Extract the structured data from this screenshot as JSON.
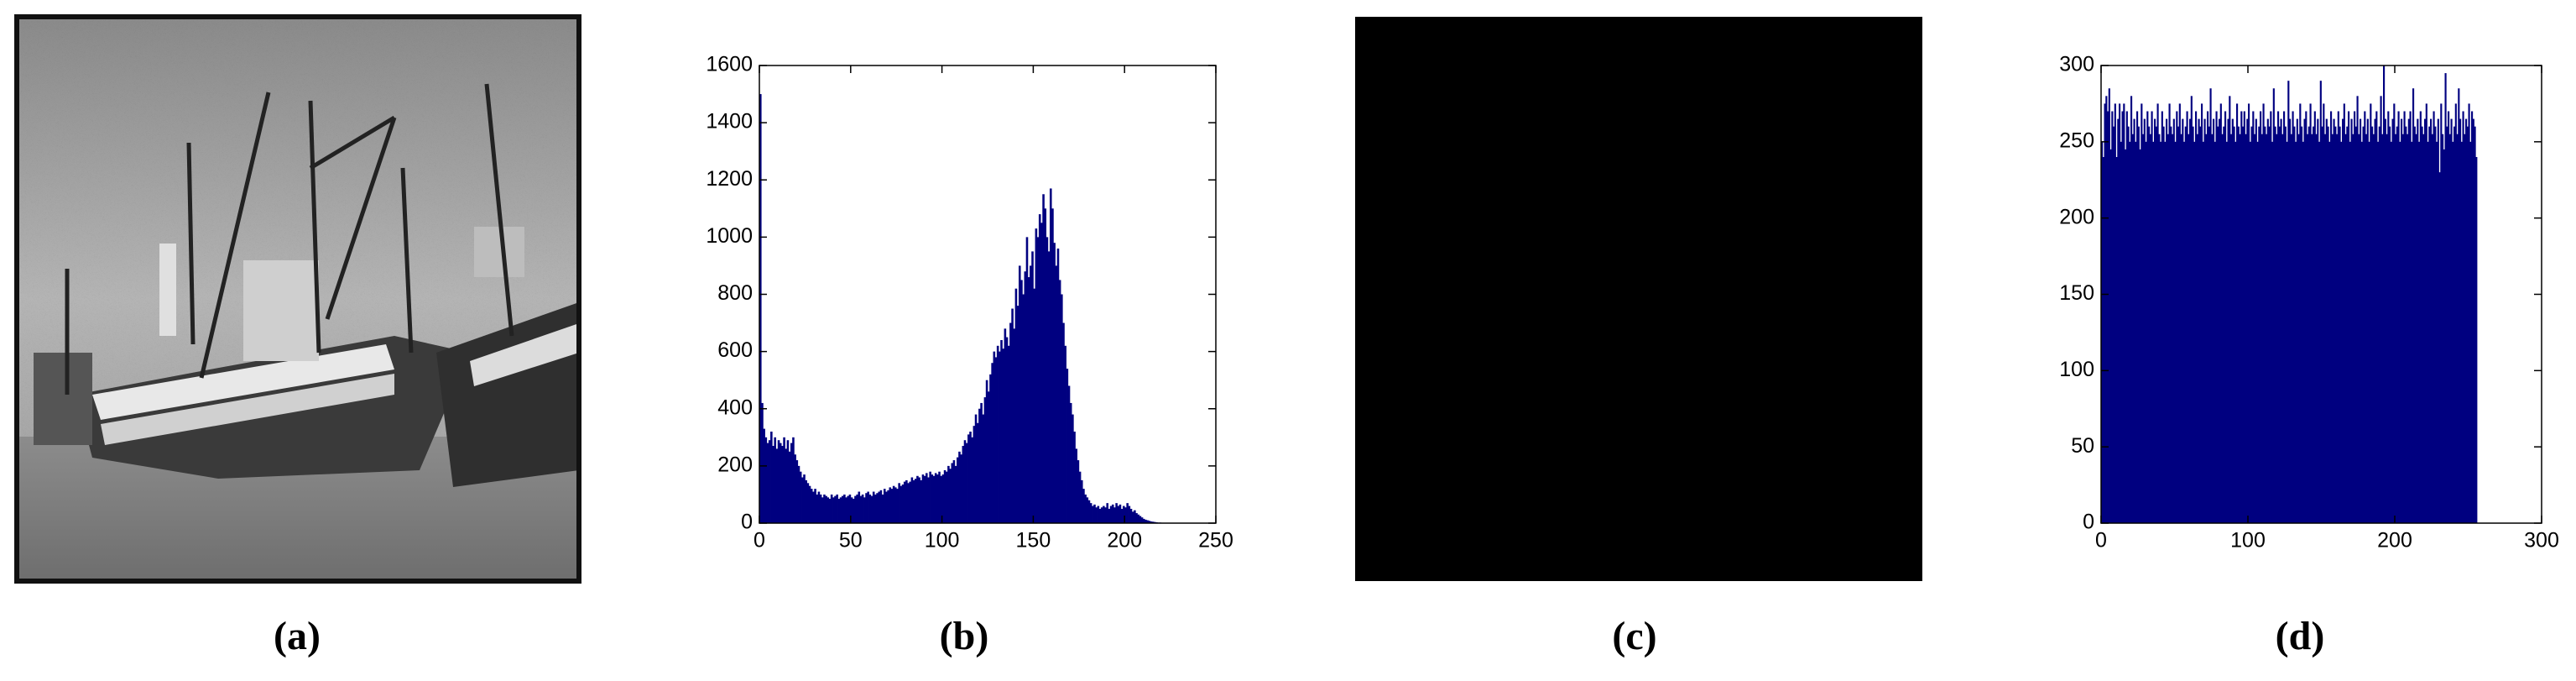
{
  "captions": [
    "(a)",
    "(b)",
    "(c)",
    "(d)"
  ],
  "chart_data": [
    {
      "type": "histogram",
      "color": "#000080",
      "xlim": [
        0,
        250
      ],
      "xticks": [
        0,
        50,
        100,
        150,
        200,
        250
      ],
      "ylim": [
        0,
        1600
      ],
      "yticks": [
        0,
        200,
        400,
        600,
        800,
        1000,
        1200,
        1400,
        1600
      ],
      "x": [
        0,
        1,
        2,
        3,
        4,
        5,
        6,
        7,
        8,
        9,
        10,
        11,
        12,
        13,
        14,
        15,
        16,
        17,
        18,
        19,
        20,
        21,
        22,
        23,
        24,
        25,
        26,
        27,
        28,
        29,
        30,
        31,
        32,
        33,
        34,
        35,
        36,
        37,
        38,
        39,
        40,
        41,
        42,
        43,
        44,
        45,
        46,
        47,
        48,
        49,
        50,
        51,
        52,
        53,
        54,
        55,
        56,
        57,
        58,
        59,
        60,
        61,
        62,
        63,
        64,
        65,
        66,
        67,
        68,
        69,
        70,
        71,
        72,
        73,
        74,
        75,
        76,
        77,
        78,
        79,
        80,
        81,
        82,
        83,
        84,
        85,
        86,
        87,
        88,
        89,
        90,
        91,
        92,
        93,
        94,
        95,
        96,
        97,
        98,
        99,
        100,
        101,
        102,
        103,
        104,
        105,
        106,
        107,
        108,
        109,
        110,
        111,
        112,
        113,
        114,
        115,
        116,
        117,
        118,
        119,
        120,
        121,
        122,
        123,
        124,
        125,
        126,
        127,
        128,
        129,
        130,
        131,
        132,
        133,
        134,
        135,
        136,
        137,
        138,
        139,
        140,
        141,
        142,
        143,
        144,
        145,
        146,
        147,
        148,
        149,
        150,
        151,
        152,
        153,
        154,
        155,
        156,
        157,
        158,
        159,
        160,
        161,
        162,
        163,
        164,
        165,
        166,
        167,
        168,
        169,
        170,
        171,
        172,
        173,
        174,
        175,
        176,
        177,
        178,
        179,
        180,
        181,
        182,
        183,
        184,
        185,
        186,
        187,
        188,
        189,
        190,
        191,
        192,
        193,
        194,
        195,
        196,
        197,
        198,
        199,
        200,
        201,
        202,
        203,
        204,
        205,
        206,
        207,
        208,
        209,
        210,
        211,
        212,
        213,
        214,
        215,
        216,
        217,
        218,
        219,
        220,
        221,
        222,
        223,
        224,
        225,
        226,
        227,
        228,
        229,
        230,
        231,
        232,
        233,
        234,
        235,
        236,
        237,
        238,
        239,
        240,
        241,
        242,
        243,
        244,
        245,
        246,
        247,
        248,
        249,
        250,
        251,
        252,
        253,
        254,
        255
      ],
      "values": [
        1500,
        420,
        330,
        300,
        280,
        290,
        320,
        270,
        300,
        260,
        290,
        280,
        270,
        300,
        260,
        290,
        250,
        280,
        300,
        240,
        220,
        200,
        180,
        160,
        170,
        150,
        140,
        130,
        120,
        110,
        120,
        100,
        110,
        100,
        90,
        100,
        95,
        90,
        85,
        100,
        90,
        95,
        100,
        85,
        90,
        95,
        100,
        90,
        95,
        100,
        90,
        85,
        95,
        100,
        110,
        95,
        100,
        90,
        105,
        110,
        100,
        95,
        110,
        100,
        105,
        110,
        115,
        100,
        120,
        110,
        115,
        125,
        120,
        130,
        125,
        120,
        140,
        130,
        135,
        145,
        150,
        140,
        145,
        160,
        150,
        155,
        165,
        160,
        150,
        170,
        165,
        175,
        160,
        180,
        170,
        165,
        175,
        170,
        180,
        165,
        170,
        185,
        180,
        200,
        190,
        210,
        220,
        200,
        230,
        250,
        240,
        270,
        290,
        280,
        310,
        320,
        300,
        340,
        380,
        350,
        400,
        420,
        380,
        440,
        500,
        460,
        520,
        560,
        600,
        580,
        620,
        600,
        640,
        610,
        680,
        650,
        620,
        700,
        750,
        680,
        820,
        760,
        900,
        850,
        800,
        880,
        1000,
        860,
        900,
        950,
        820,
        1030,
        1000,
        1080,
        1050,
        1150,
        1100,
        1000,
        950,
        1170,
        1100,
        980,
        900,
        960,
        850,
        800,
        700,
        620,
        540,
        480,
        420,
        380,
        320,
        260,
        220,
        180,
        150,
        120,
        100,
        90,
        80,
        70,
        60,
        65,
        55,
        60,
        50,
        55,
        60,
        55,
        70,
        50,
        60,
        65,
        55,
        70,
        60,
        65,
        50,
        60,
        55,
        70,
        60,
        50,
        40,
        45,
        35,
        30,
        25,
        20,
        15,
        12,
        10,
        8,
        6,
        5,
        4,
        3,
        2,
        2,
        1,
        1,
        0,
        0,
        0,
        0,
        0,
        0,
        0,
        0,
        0,
        0,
        0,
        0,
        0,
        0,
        0,
        0,
        0,
        0,
        0,
        0,
        0,
        0,
        0,
        0,
        0,
        0,
        0,
        0,
        0,
        0,
        0,
        0,
        0,
        0
      ]
    },
    {
      "type": "histogram",
      "color": "#000080",
      "xlim": [
        0,
        300
      ],
      "xticks": [
        0,
        100,
        200,
        300
      ],
      "ylim": [
        0,
        300
      ],
      "yticks": [
        0,
        50,
        100,
        150,
        200,
        250,
        300
      ],
      "x": [
        0,
        1,
        2,
        3,
        4,
        5,
        6,
        7,
        8,
        9,
        10,
        11,
        12,
        13,
        14,
        15,
        16,
        17,
        18,
        19,
        20,
        21,
        22,
        23,
        24,
        25,
        26,
        27,
        28,
        29,
        30,
        31,
        32,
        33,
        34,
        35,
        36,
        37,
        38,
        39,
        40,
        41,
        42,
        43,
        44,
        45,
        46,
        47,
        48,
        49,
        50,
        51,
        52,
        53,
        54,
        55,
        56,
        57,
        58,
        59,
        60,
        61,
        62,
        63,
        64,
        65,
        66,
        67,
        68,
        69,
        70,
        71,
        72,
        73,
        74,
        75,
        76,
        77,
        78,
        79,
        80,
        81,
        82,
        83,
        84,
        85,
        86,
        87,
        88,
        89,
        90,
        91,
        92,
        93,
        94,
        95,
        96,
        97,
        98,
        99,
        100,
        101,
        102,
        103,
        104,
        105,
        106,
        107,
        108,
        109,
        110,
        111,
        112,
        113,
        114,
        115,
        116,
        117,
        118,
        119,
        120,
        121,
        122,
        123,
        124,
        125,
        126,
        127,
        128,
        129,
        130,
        131,
        132,
        133,
        134,
        135,
        136,
        137,
        138,
        139,
        140,
        141,
        142,
        143,
        144,
        145,
        146,
        147,
        148,
        149,
        150,
        151,
        152,
        153,
        154,
        155,
        156,
        157,
        158,
        159,
        160,
        161,
        162,
        163,
        164,
        165,
        166,
        167,
        168,
        169,
        170,
        171,
        172,
        173,
        174,
        175,
        176,
        177,
        178,
        179,
        180,
        181,
        182,
        183,
        184,
        185,
        186,
        187,
        188,
        189,
        190,
        191,
        192,
        193,
        194,
        195,
        196,
        197,
        198,
        199,
        200,
        201,
        202,
        203,
        204,
        205,
        206,
        207,
        208,
        209,
        210,
        211,
        212,
        213,
        214,
        215,
        216,
        217,
        218,
        219,
        220,
        221,
        222,
        223,
        224,
        225,
        226,
        227,
        228,
        229,
        230,
        231,
        232,
        233,
        234,
        235,
        236,
        237,
        238,
        239,
        240,
        241,
        242,
        243,
        244,
        245,
        246,
        247,
        248,
        249,
        250,
        251,
        252,
        253,
        254,
        255
      ],
      "values": [
        250,
        240,
        275,
        280,
        270,
        285,
        245,
        270,
        260,
        275,
        240,
        265,
        275,
        250,
        270,
        275,
        245,
        270,
        260,
        250,
        280,
        255,
        265,
        250,
        270,
        260,
        245,
        275,
        255,
        265,
        250,
        270,
        260,
        255,
        270,
        250,
        265,
        260,
        275,
        255,
        250,
        270,
        260,
        250,
        265,
        255,
        275,
        260,
        255,
        265,
        250,
        270,
        260,
        275,
        255,
        265,
        250,
        260,
        270,
        255,
        265,
        280,
        260,
        250,
        270,
        255,
        265,
        260,
        275,
        250,
        265,
        255,
        270,
        260,
        285,
        255,
        265,
        250,
        270,
        260,
        265,
        275,
        255,
        260,
        270,
        250,
        265,
        280,
        255,
        265,
        260,
        250,
        275,
        260,
        255,
        270,
        260,
        270,
        255,
        265,
        275,
        250,
        260,
        270,
        255,
        265,
        250,
        260,
        270,
        255,
        275,
        260,
        255,
        265,
        260,
        270,
        250,
        285,
        260,
        255,
        270,
        260,
        265,
        255,
        270,
        260,
        250,
        290,
        265,
        255,
        270,
        260,
        250,
        265,
        255,
        275,
        260,
        250,
        265,
        270,
        255,
        260,
        275,
        255,
        260,
        270,
        255,
        265,
        250,
        290,
        260,
        275,
        255,
        265,
        260,
        250,
        270,
        255,
        265,
        260,
        255,
        270,
        260,
        250,
        265,
        275,
        255,
        260,
        270,
        250,
        265,
        255,
        270,
        260,
        280,
        255,
        265,
        250,
        260,
        270,
        255,
        265,
        250,
        275,
        260,
        255,
        265,
        270,
        250,
        260,
        280,
        255,
        300,
        265,
        255,
        270,
        260,
        250,
        265,
        275,
        255,
        260,
        270,
        250,
        265,
        255,
        270,
        260,
        255,
        265,
        270,
        250,
        285,
        260,
        255,
        265,
        250,
        270,
        260,
        255,
        265,
        275,
        250,
        260,
        265,
        255,
        270,
        260,
        250,
        265,
        230,
        275,
        255,
        245,
        295,
        260,
        270,
        255,
        265,
        250,
        260,
        275,
        255,
        285,
        265,
        250,
        270,
        255,
        265,
        260,
        275,
        250,
        270,
        265,
        260,
        240
      ]
    }
  ]
}
